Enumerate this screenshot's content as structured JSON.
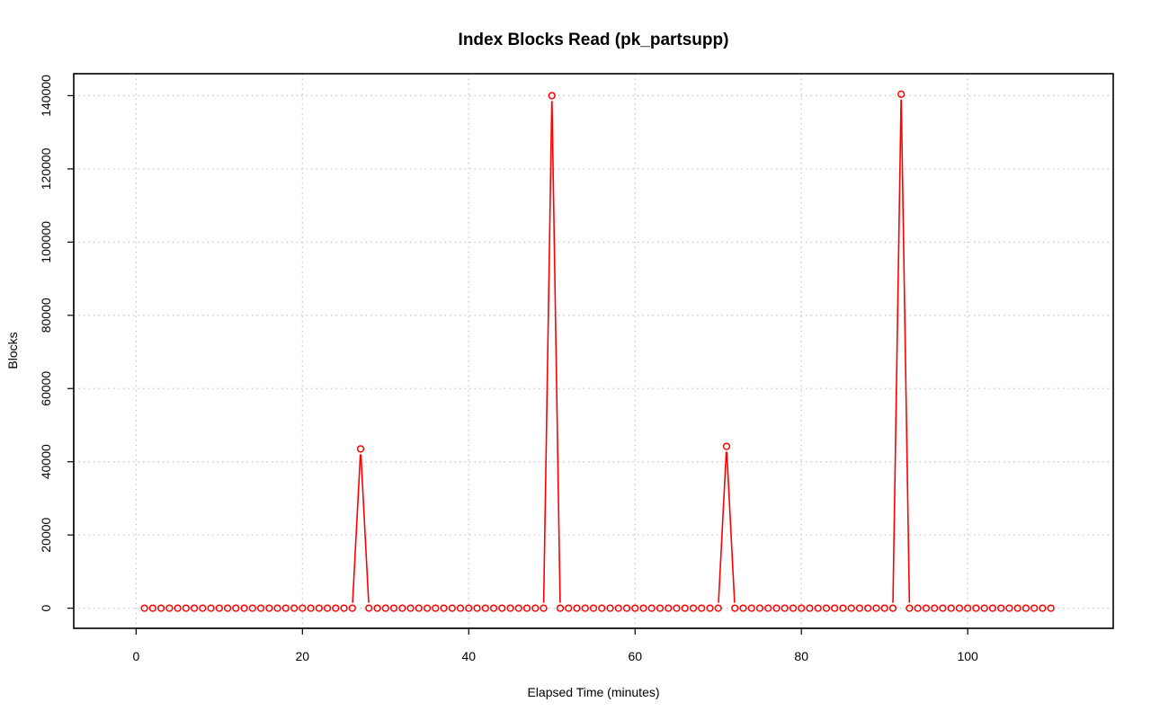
{
  "chart_data": {
    "type": "line",
    "title": "Index Blocks Read (pk_partsupp)",
    "xlabel": "Elapsed Time (minutes)",
    "ylabel": "Blocks",
    "xlim": [
      -7.5,
      117.5
    ],
    "ylim": [
      -5500,
      146000
    ],
    "x_ticks": [
      0,
      20,
      40,
      60,
      80,
      100
    ],
    "x_tick_labels": [
      "0",
      "20",
      "40",
      "60",
      "80",
      "100"
    ],
    "y_ticks": [
      0,
      20000,
      40000,
      60000,
      80000,
      100000,
      120000,
      140000
    ],
    "y_tick_labels": [
      "0",
      "20000",
      "40000",
      "60000",
      "80000",
      "100000",
      "120000",
      "140000"
    ],
    "grid": true,
    "color": "#ff0000",
    "x_start": 1,
    "x_end": 110,
    "baseline_value": 0,
    "spikes": [
      {
        "x": 27,
        "y": 43500
      },
      {
        "x": 50,
        "y": 140000
      },
      {
        "x": 71,
        "y": 44200
      },
      {
        "x": 92,
        "y": 140400
      }
    ]
  }
}
